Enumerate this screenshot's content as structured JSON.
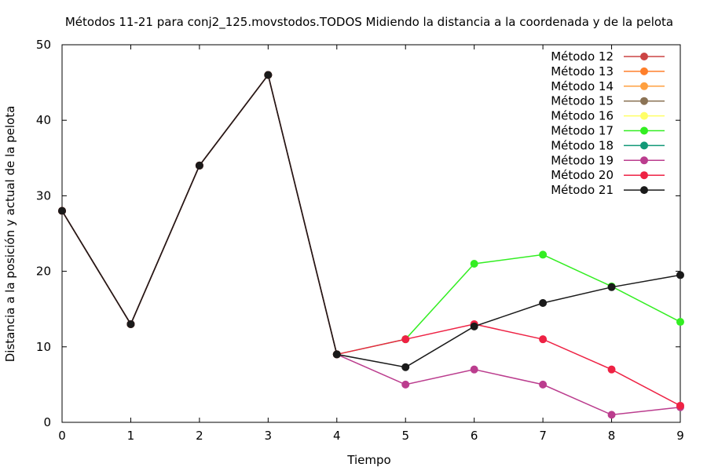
{
  "chart_data": {
    "type": "line",
    "title": "Métodos 11-21 para conj2_125.movstodos.TODOS Midiendo la distancia a la coordenada y de la pelota",
    "xlabel": "Tiempo",
    "ylabel": "Distancia a la posición y actual de la pelota",
    "xlim": [
      0,
      9
    ],
    "ylim": [
      0,
      50
    ],
    "xticks": [
      0,
      1,
      2,
      3,
      4,
      5,
      6,
      7,
      8,
      9
    ],
    "yticks": [
      0,
      10,
      20,
      30,
      40,
      50
    ],
    "grid": false,
    "legend_position": "top-right",
    "series": [
      {
        "name": "Método 12",
        "color": "#cc4444",
        "x": [
          0,
          1,
          2,
          3,
          4
        ],
        "y": [
          28,
          13,
          34,
          46,
          9
        ]
      },
      {
        "name": "Método 13",
        "color": "#ff7f2a",
        "x": [
          0,
          1,
          2,
          3,
          4
        ],
        "y": [
          28,
          13,
          34,
          46,
          9
        ]
      },
      {
        "name": "Método 14",
        "color": "#ffa040",
        "x": [
          0,
          1,
          2,
          3,
          4
        ],
        "y": [
          28,
          13,
          34,
          46,
          9
        ]
      },
      {
        "name": "Método 15",
        "color": "#8b7355",
        "x": [
          0,
          1,
          2,
          3,
          4
        ],
        "y": [
          28,
          13,
          34,
          46,
          9
        ]
      },
      {
        "name": "Método 16",
        "color": "#ffff66",
        "x": [
          0,
          1,
          2,
          3,
          4
        ],
        "y": [
          28,
          13,
          34,
          46,
          9
        ]
      },
      {
        "name": "Método 17",
        "color": "#33ee22",
        "x": [
          0,
          1,
          2,
          3,
          4,
          5,
          6,
          7,
          8,
          9
        ],
        "y": [
          28,
          13,
          34,
          46,
          9,
          11,
          21,
          22.2,
          18,
          13.3
        ]
      },
      {
        "name": "Método 18",
        "color": "#119977",
        "x": [
          0,
          1,
          2,
          3,
          4
        ],
        "y": [
          28,
          13,
          34,
          46,
          9
        ]
      },
      {
        "name": "Método 19",
        "color": "#bb3d8e",
        "x": [
          0,
          1,
          2,
          3,
          4,
          5,
          6,
          7,
          8,
          9
        ],
        "y": [
          28,
          13,
          34,
          46,
          9,
          5,
          7,
          5,
          1,
          2
        ]
      },
      {
        "name": "Método 20",
        "color": "#ee2244",
        "x": [
          0,
          1,
          2,
          3,
          4,
          5,
          6,
          7,
          8,
          9
        ],
        "y": [
          28,
          13,
          34,
          46,
          9,
          11,
          13,
          11,
          7,
          2.2
        ]
      },
      {
        "name": "Método 21",
        "color": "#1a1a1a",
        "x": [
          0,
          1,
          2,
          3,
          4,
          5,
          6,
          7,
          8,
          9
        ],
        "y": [
          28,
          13,
          34,
          46,
          9,
          7.3,
          12.7,
          15.8,
          17.9,
          19.5
        ]
      }
    ]
  }
}
